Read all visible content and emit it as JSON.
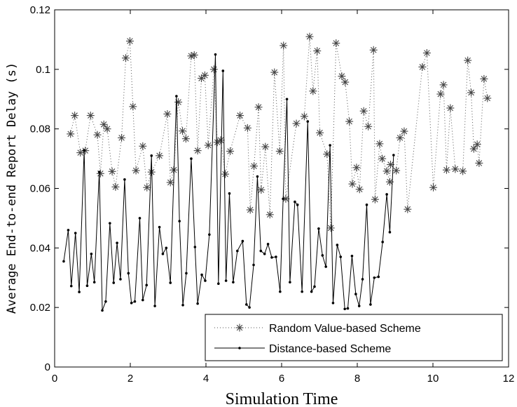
{
  "chart_data": {
    "type": "line",
    "title": "",
    "xlabel": "Simulation Time",
    "ylabel": "Average End-to-end Report Delay (s)",
    "xlim": [
      0,
      12
    ],
    "ylim": [
      0,
      0.12
    ],
    "x_ticks": [
      "0",
      "2",
      "4",
      "6",
      "8",
      "10",
      "12"
    ],
    "y_ticks": [
      "0",
      "0.02",
      "0.04",
      "0.06",
      "0.08",
      "0.1",
      "0.12"
    ],
    "grid": false,
    "legend_position": "bottom-right",
    "series": [
      {
        "name": "Random Value-based Scheme",
        "style": "dotted-asterisk",
        "color": "#555555",
        "points": [
          [
            0.42,
            0.0783
          ],
          [
            0.53,
            0.0845
          ],
          [
            0.68,
            0.072
          ],
          [
            0.81,
            0.0727
          ],
          [
            0.95,
            0.0845
          ],
          [
            1.13,
            0.078
          ],
          [
            1.21,
            0.065
          ],
          [
            1.3,
            0.0815
          ],
          [
            1.39,
            0.08
          ],
          [
            1.52,
            0.0657
          ],
          [
            1.61,
            0.0605
          ],
          [
            1.77,
            0.077
          ],
          [
            1.88,
            0.1038
          ],
          [
            1.99,
            0.1095
          ],
          [
            2.07,
            0.0875
          ],
          [
            2.15,
            0.066
          ],
          [
            2.33,
            0.0742
          ],
          [
            2.44,
            0.0603
          ],
          [
            2.56,
            0.0655
          ],
          [
            2.77,
            0.071
          ],
          [
            2.98,
            0.085
          ],
          [
            3.06,
            0.062
          ],
          [
            3.15,
            0.0662
          ],
          [
            3.27,
            0.089
          ],
          [
            3.38,
            0.0793
          ],
          [
            3.47,
            0.0767
          ],
          [
            3.61,
            0.1045
          ],
          [
            3.69,
            0.1048
          ],
          [
            3.78,
            0.0727
          ],
          [
            3.88,
            0.097
          ],
          [
            3.97,
            0.098
          ],
          [
            4.06,
            0.0745
          ],
          [
            4.21,
            0.1
          ],
          [
            4.3,
            0.0755
          ],
          [
            4.39,
            0.0762
          ],
          [
            4.51,
            0.0648
          ],
          [
            4.64,
            0.0725
          ],
          [
            4.9,
            0.0845
          ],
          [
            5.1,
            0.0803
          ],
          [
            5.17,
            0.0528
          ],
          [
            5.27,
            0.0675
          ],
          [
            5.39,
            0.0873
          ],
          [
            5.46,
            0.0595
          ],
          [
            5.57,
            0.074
          ],
          [
            5.69,
            0.0512
          ],
          [
            5.81,
            0.099
          ],
          [
            5.95,
            0.0725
          ],
          [
            6.05,
            0.108
          ],
          [
            6.11,
            0.0565
          ],
          [
            6.39,
            0.0818
          ],
          [
            6.6,
            0.0842
          ],
          [
            6.74,
            0.111
          ],
          [
            6.83,
            0.0927
          ],
          [
            6.94,
            0.1062
          ],
          [
            7.01,
            0.0787
          ],
          [
            7.2,
            0.0715
          ],
          [
            7.3,
            0.0467
          ],
          [
            7.44,
            0.1088
          ],
          [
            7.59,
            0.0977
          ],
          [
            7.68,
            0.0957
          ],
          [
            7.79,
            0.0825
          ],
          [
            7.87,
            0.0615
          ],
          [
            7.98,
            0.067
          ],
          [
            8.06,
            0.0597
          ],
          [
            8.17,
            0.086
          ],
          [
            8.29,
            0.0808
          ],
          [
            8.43,
            0.1065
          ],
          [
            8.47,
            0.0563
          ],
          [
            8.59,
            0.075
          ],
          [
            8.66,
            0.07
          ],
          [
            8.78,
            0.0658
          ],
          [
            8.86,
            0.0622
          ],
          [
            8.88,
            0.068
          ],
          [
            9.03,
            0.066
          ],
          [
            9.13,
            0.077
          ],
          [
            9.24,
            0.0792
          ],
          [
            9.33,
            0.053
          ],
          [
            9.72,
            0.1008
          ],
          [
            9.84,
            0.1055
          ],
          [
            10.01,
            0.0603
          ],
          [
            10.2,
            0.0917
          ],
          [
            10.28,
            0.0948
          ],
          [
            10.36,
            0.0662
          ],
          [
            10.46,
            0.087
          ],
          [
            10.59,
            0.0665
          ],
          [
            10.79,
            0.0658
          ],
          [
            10.92,
            0.103
          ],
          [
            11.01,
            0.0922
          ],
          [
            11.08,
            0.0733
          ],
          [
            11.17,
            0.0748
          ],
          [
            11.22,
            0.0685
          ],
          [
            11.35,
            0.0968
          ],
          [
            11.44,
            0.0903
          ]
        ]
      },
      {
        "name": "Distance-based Scheme",
        "style": "solid-dot",
        "color": "#000000",
        "points": [
          [
            0.24,
            0.0355
          ],
          [
            0.36,
            0.046
          ],
          [
            0.44,
            0.0272
          ],
          [
            0.55,
            0.045
          ],
          [
            0.65,
            0.0252
          ],
          [
            0.78,
            0.0728
          ],
          [
            0.86,
            0.0273
          ],
          [
            0.97,
            0.038
          ],
          [
            1.05,
            0.0285
          ],
          [
            1.18,
            0.0655
          ],
          [
            1.26,
            0.019
          ],
          [
            1.35,
            0.022
          ],
          [
            1.46,
            0.0483
          ],
          [
            1.56,
            0.0283
          ],
          [
            1.65,
            0.0417
          ],
          [
            1.74,
            0.0295
          ],
          [
            1.85,
            0.063
          ],
          [
            1.95,
            0.0315
          ],
          [
            2.03,
            0.0215
          ],
          [
            2.12,
            0.022
          ],
          [
            2.25,
            0.05
          ],
          [
            2.33,
            0.0225
          ],
          [
            2.43,
            0.0275
          ],
          [
            2.56,
            0.071
          ],
          [
            2.65,
            0.0205
          ],
          [
            2.77,
            0.047
          ],
          [
            2.86,
            0.038
          ],
          [
            2.95,
            0.04
          ],
          [
            3.06,
            0.0283
          ],
          [
            3.22,
            0.091
          ],
          [
            3.3,
            0.049
          ],
          [
            3.39,
            0.0208
          ],
          [
            3.48,
            0.0315
          ],
          [
            3.61,
            0.07
          ],
          [
            3.71,
            0.0403
          ],
          [
            3.78,
            0.0213
          ],
          [
            3.89,
            0.031
          ],
          [
            3.98,
            0.029
          ],
          [
            4.09,
            0.0445
          ],
          [
            4.25,
            0.105
          ],
          [
            4.33,
            0.028
          ],
          [
            4.45,
            0.0995
          ],
          [
            4.53,
            0.029
          ],
          [
            4.62,
            0.0583
          ],
          [
            4.72,
            0.0285
          ],
          [
            4.83,
            0.039
          ],
          [
            4.97,
            0.0423
          ],
          [
            5.07,
            0.021
          ],
          [
            5.15,
            0.02
          ],
          [
            5.26,
            0.0343
          ],
          [
            5.36,
            0.064
          ],
          [
            5.45,
            0.039
          ],
          [
            5.55,
            0.038
          ],
          [
            5.64,
            0.0413
          ],
          [
            5.74,
            0.0368
          ],
          [
            5.85,
            0.037
          ],
          [
            5.96,
            0.0253
          ],
          [
            6.04,
            0.0565
          ],
          [
            6.14,
            0.09
          ],
          [
            6.22,
            0.0285
          ],
          [
            6.35,
            0.0555
          ],
          [
            6.42,
            0.0545
          ],
          [
            6.54,
            0.0253
          ],
          [
            6.69,
            0.0825
          ],
          [
            6.79,
            0.0253
          ],
          [
            6.87,
            0.027
          ],
          [
            6.98,
            0.0465
          ],
          [
            7.08,
            0.0375
          ],
          [
            7.17,
            0.0337
          ],
          [
            7.28,
            0.0745
          ],
          [
            7.36,
            0.0215
          ],
          [
            7.47,
            0.041
          ],
          [
            7.56,
            0.037
          ],
          [
            7.67,
            0.0195
          ],
          [
            7.75,
            0.0197
          ],
          [
            7.86,
            0.0373
          ],
          [
            7.96,
            0.0245
          ],
          [
            8.05,
            0.0205
          ],
          [
            8.14,
            0.0295
          ],
          [
            8.25,
            0.0545
          ],
          [
            8.35,
            0.021
          ],
          [
            8.45,
            0.03
          ],
          [
            8.56,
            0.0303
          ],
          [
            8.67,
            0.042
          ],
          [
            8.78,
            0.058
          ],
          [
            8.86,
            0.0453
          ],
          [
            8.96,
            0.0712
          ]
        ]
      }
    ]
  }
}
